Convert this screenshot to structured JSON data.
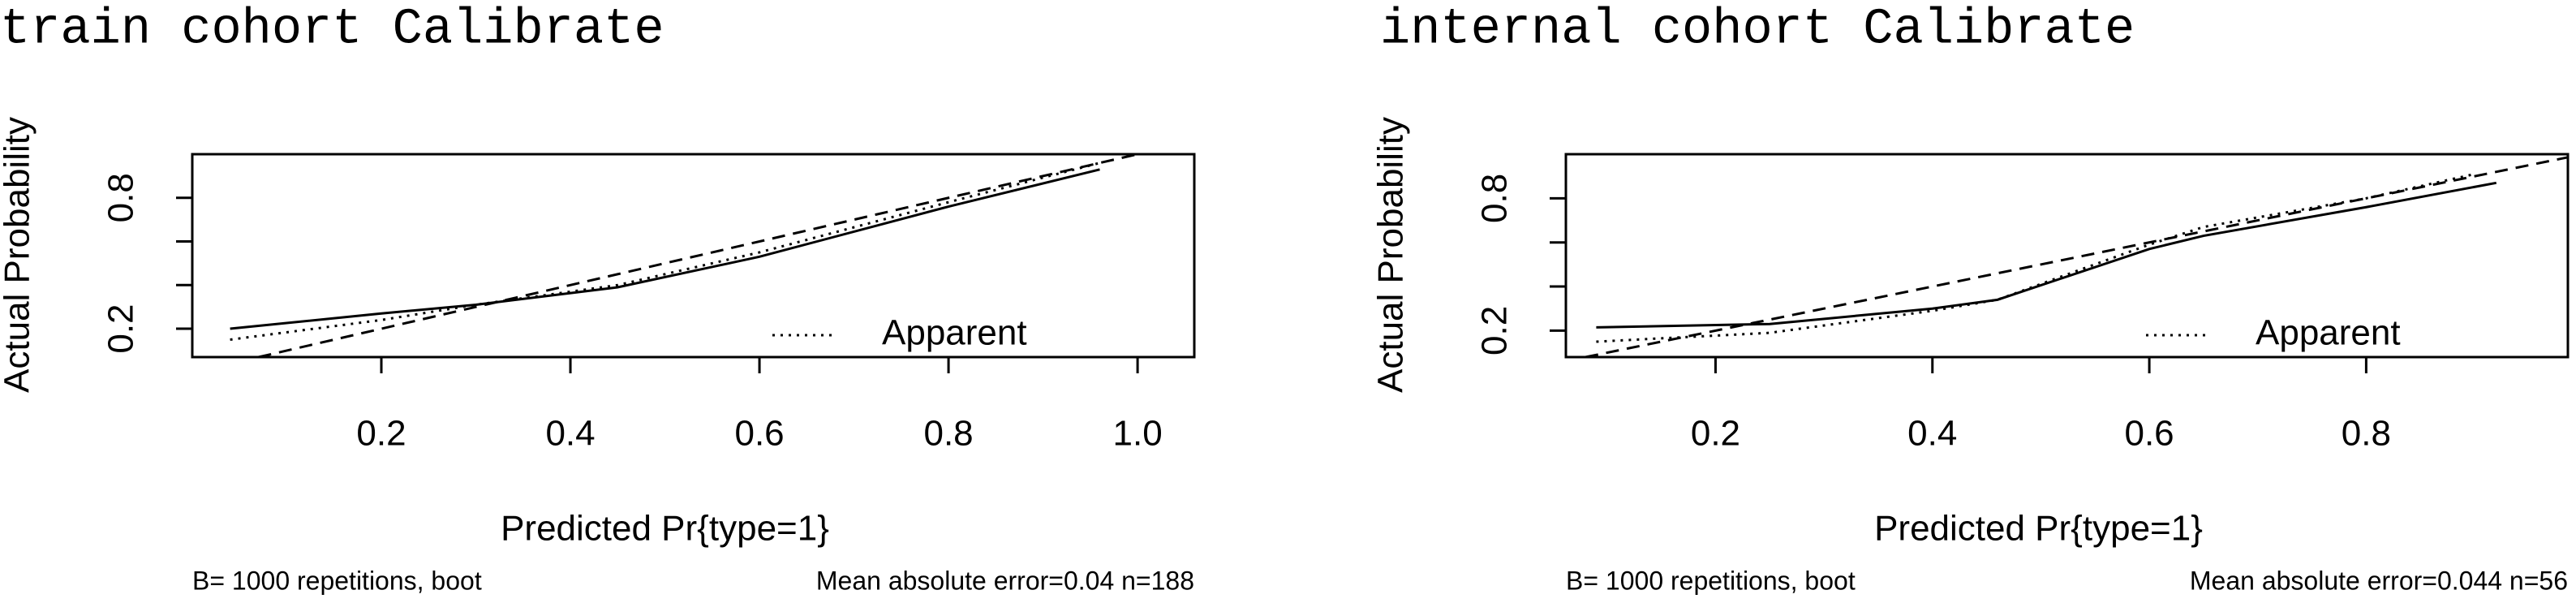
{
  "chart_data": [
    {
      "type": "line",
      "title": "train cohort Calibrate",
      "xlabel": "Predicted Pr{type=1}",
      "ylabel": "Actual Probability",
      "subtitle_left": "B= 1000 repetitions, boot",
      "subtitle_right": "Mean absolute error=0.04 n=188",
      "xlim": [
        0.0,
        1.06
      ],
      "ylim": [
        0.07,
        1.0
      ],
      "xticks": [
        0.2,
        0.4,
        0.6,
        0.8,
        {
          "value": 1.0,
          "label": "1.0"
        }
      ],
      "yticks": [
        0.2,
        {
          "value": 0.4,
          "label": null
        },
        {
          "value": 0.6,
          "label": null
        },
        0.8
      ],
      "legend": "bottom-right",
      "series": [
        {
          "name": "Apparent",
          "color": "#000000",
          "dash": "dotted",
          "x": [
            0.04,
            0.2,
            0.3,
            0.45,
            0.6,
            0.8,
            0.96
          ],
          "values": [
            0.15,
            0.24,
            0.31,
            0.4,
            0.55,
            0.78,
            0.96
          ]
        },
        {
          "color": "#000000",
          "dash": "solid",
          "x": [
            0.04,
            0.2,
            0.3,
            0.45,
            0.6,
            0.8,
            0.96
          ],
          "values": [
            0.2,
            0.27,
            0.31,
            0.39,
            0.53,
            0.76,
            0.93
          ]
        },
        {
          "color": "#000000",
          "dash": "dashed",
          "x": [
            0.07,
            1.0
          ],
          "values": [
            0.07,
            1.0
          ]
        }
      ]
    },
    {
      "type": "line",
      "title": "internal cohort Calibrate",
      "xlabel": "Predicted Pr{type=1}",
      "ylabel": "Actual Probability",
      "subtitle_left": "B= 1000 repetitions, boot",
      "subtitle_right": "Mean absolute error=0.044 n=56",
      "xlim": [
        0.062,
        0.986
      ],
      "ylim": [
        0.08,
        1.0
      ],
      "xticks": [
        0.2,
        0.4,
        0.6,
        0.8
      ],
      "yticks": [
        0.2,
        {
          "value": 0.4,
          "label": null
        },
        {
          "value": 0.6,
          "label": null
        },
        0.8
      ],
      "legend": "bottom-right",
      "series": [
        {
          "name": "Apparent",
          "color": "#000000",
          "dash": "dotted",
          "x": [
            0.09,
            0.25,
            0.4,
            0.46,
            0.6,
            0.65,
            0.8,
            0.9
          ],
          "values": [
            0.15,
            0.19,
            0.29,
            0.34,
            0.59,
            0.67,
            0.8,
            0.91
          ]
        },
        {
          "color": "#000000",
          "dash": "solid",
          "x": [
            0.09,
            0.25,
            0.4,
            0.46,
            0.6,
            0.65,
            0.8,
            0.92
          ],
          "values": [
            0.215,
            0.23,
            0.3,
            0.34,
            0.57,
            0.63,
            0.76,
            0.87
          ]
        },
        {
          "color": "#000000",
          "dash": "dashed",
          "x": [
            0.08,
            0.986
          ],
          "values": [
            0.08,
            0.986
          ]
        }
      ]
    }
  ]
}
